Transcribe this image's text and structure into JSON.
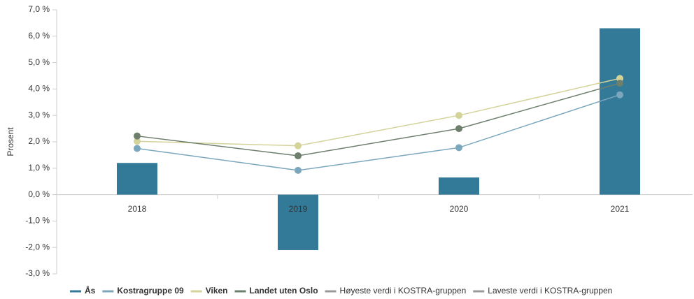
{
  "chart_data": {
    "type": "bar",
    "ylabel": "Prosent",
    "categories": [
      "2018",
      "2019",
      "2020",
      "2021"
    ],
    "ylim": [
      -3,
      7
    ],
    "yticks": [
      {
        "value": 7,
        "label": "7,0 %"
      },
      {
        "value": 6,
        "label": "6,0 %"
      },
      {
        "value": 5,
        "label": "5,0 %"
      },
      {
        "value": 4,
        "label": "4,0 %"
      },
      {
        "value": 3,
        "label": "3,0 %"
      },
      {
        "value": 2,
        "label": "2,0 %"
      },
      {
        "value": 1,
        "label": "1,0 %"
      },
      {
        "value": 0,
        "label": "0,0 %"
      },
      {
        "value": -1,
        "label": "-1,0 %"
      },
      {
        "value": -2,
        "label": "-2,0 %"
      },
      {
        "value": -3,
        "label": "-3,0 %"
      }
    ],
    "grid": false,
    "series": [
      {
        "name": "Ås",
        "type": "bar",
        "color": "#337a99",
        "values": [
          1.2,
          -2.1,
          0.65,
          6.3
        ]
      },
      {
        "name": "Kostragruppe 09",
        "type": "line",
        "color": "#7ba7bd",
        "values": [
          1.75,
          0.92,
          1.78,
          3.78
        ]
      },
      {
        "name": "Viken",
        "type": "line",
        "color": "#d3d39a",
        "values": [
          2.02,
          1.85,
          3.0,
          4.4
        ]
      },
      {
        "name": "Landet uten Oslo",
        "type": "line",
        "color": "#6e7f6e",
        "values": [
          2.22,
          1.47,
          2.5,
          4.22
        ]
      },
      {
        "name": "Høyeste verdi i KOSTRA-gruppen",
        "type": "line",
        "color": "#999999",
        "hidden": true,
        "values": [
          null,
          null,
          null,
          null
        ]
      },
      {
        "name": "Laveste verdi i KOSTRA-gruppen",
        "type": "line",
        "color": "#999999",
        "hidden": true,
        "values": [
          null,
          null,
          null,
          null
        ]
      }
    ]
  }
}
